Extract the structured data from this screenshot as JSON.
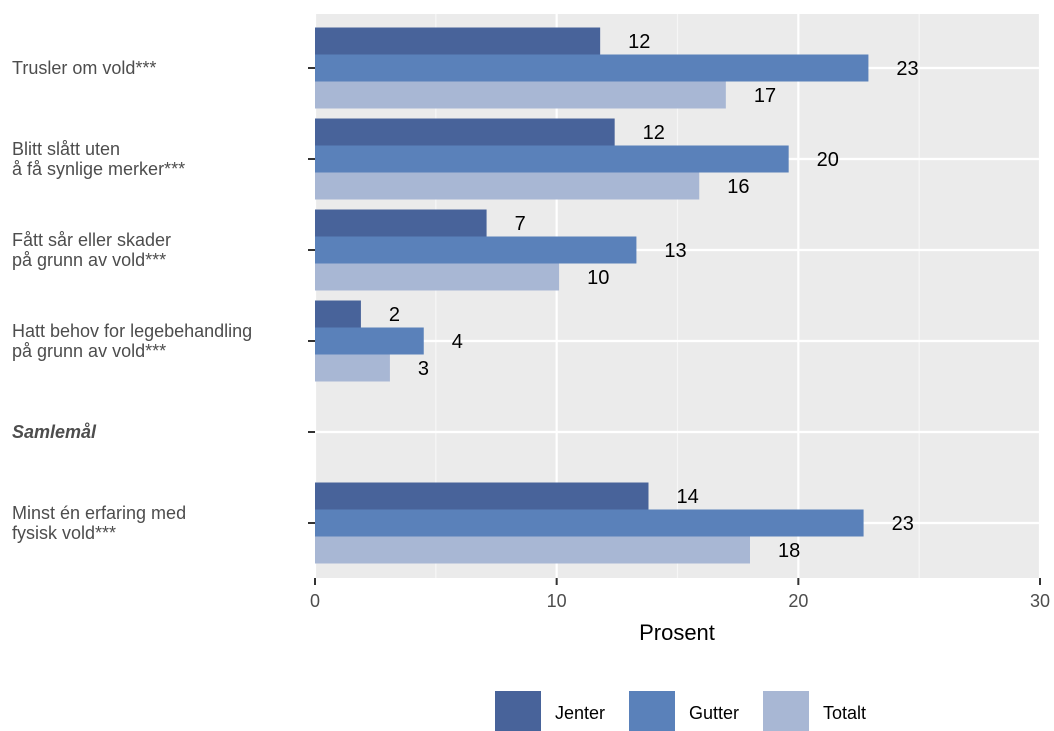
{
  "chart_data": {
    "type": "bar",
    "orientation": "horizontal",
    "title": "",
    "xlabel": "Prosent",
    "ylabel": "",
    "xlim": [
      0,
      30
    ],
    "x_ticks": [
      "0",
      "10",
      "20",
      "30"
    ],
    "grid": true,
    "legend_position": "bottom",
    "categories": [
      {
        "lines": [
          "Trusler om vold***"
        ],
        "italic": false
      },
      {
        "lines": [
          "Blitt slått uten",
          "å få synlige merker***"
        ],
        "italic": false
      },
      {
        "lines": [
          "Fått sår eller skader",
          "på grunn av vold***"
        ],
        "italic": false
      },
      {
        "lines": [
          "Hatt behov for legebehandling",
          "på grunn av vold***"
        ],
        "italic": false
      },
      {
        "lines": [
          "Samlemål"
        ],
        "italic": true
      },
      {
        "lines": [
          "Minst én erfaring med",
          "fysisk vold***"
        ],
        "italic": false
      }
    ],
    "series": [
      {
        "name": "Jenter",
        "color": "#48639a",
        "values": [
          11.8,
          12.4,
          7.1,
          1.9,
          null,
          13.8
        ],
        "labels": [
          "12",
          "12",
          "7",
          "2",
          "",
          "14"
        ]
      },
      {
        "name": "Gutter",
        "color": "#5a81ba",
        "values": [
          22.9,
          19.6,
          13.3,
          4.5,
          null,
          22.7
        ],
        "labels": [
          "23",
          "20",
          "13",
          "4",
          "",
          "23"
        ]
      },
      {
        "name": "Totalt",
        "color": "#a8b7d4",
        "values": [
          17.0,
          15.9,
          10.1,
          3.1,
          null,
          18.0
        ],
        "labels": [
          "17",
          "16",
          "10",
          "3",
          "",
          "18"
        ]
      }
    ]
  }
}
